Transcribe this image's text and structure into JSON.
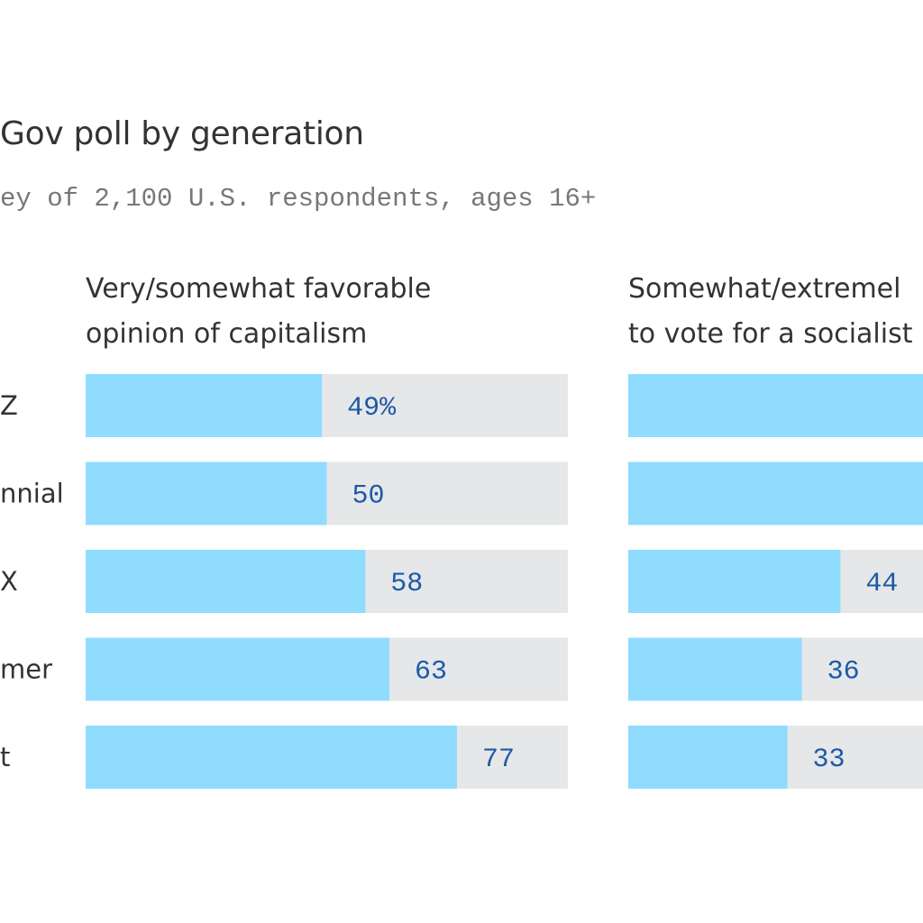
{
  "title": "Gov poll by generation",
  "subtitle": "ey of 2,100 U.S. respondents, ages 16+",
  "colors": {
    "bar": "#8fdcff",
    "track": "#e6e7e9",
    "value_text": "#1c5aa8",
    "title_text": "#333333",
    "subtitle_text": "#777777"
  },
  "chart_data": [
    {
      "type": "bar",
      "title_lines": [
        "Very/somewhat favorable",
        "opinion of capitalism"
      ],
      "categories": [
        "Z",
        "nnial",
        "X",
        "mer",
        "t"
      ],
      "values": [
        49,
        50,
        58,
        63,
        77
      ],
      "value_labels": [
        "49%",
        "50",
        "58",
        "63",
        "77"
      ],
      "xlim": [
        0,
        100
      ]
    },
    {
      "type": "bar",
      "title_lines": [
        "Somewhat/extremel",
        "to vote for a socialist"
      ],
      "categories": [
        "Z",
        "nnial",
        "X",
        "mer",
        "t"
      ],
      "values": [
        null,
        null,
        44,
        36,
        33
      ],
      "value_labels": [
        "",
        "",
        "44",
        "36",
        "33"
      ],
      "xlim": [
        0,
        100
      ]
    }
  ]
}
